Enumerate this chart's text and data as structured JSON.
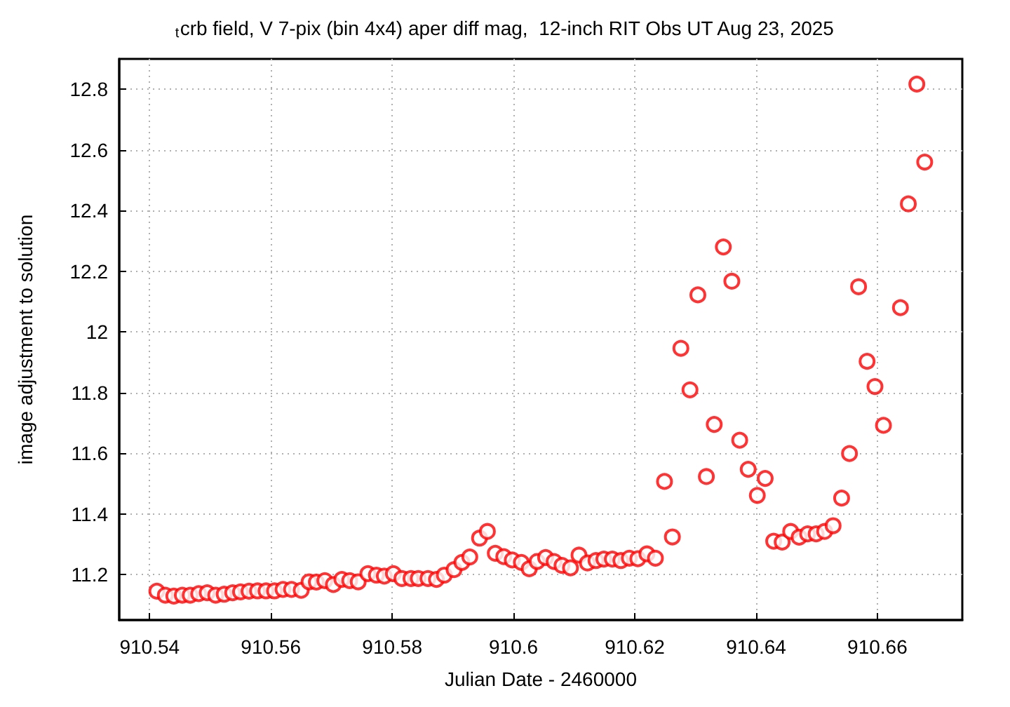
{
  "chart_data": {
    "type": "scatter",
    "title": "$_{t}$crb field, V 7-pix (bin 4x4) aper diff mag,  12-inch RIT Obs UT Aug 23, 2025",
    "xlabel": "Julian Date - 2460000",
    "ylabel": "image adjustment to solution",
    "series": [
      {
        "color": "#ff0000",
        "x": [
          910.5412,
          910.5426,
          910.544,
          910.5454,
          910.5467,
          910.5481,
          910.5495,
          910.5509,
          910.5523,
          910.5537,
          910.555,
          910.5564,
          910.5578,
          910.5592,
          910.5606,
          910.562,
          910.5634,
          910.565,
          910.5663,
          910.5675,
          910.5689,
          910.5703,
          910.5717,
          910.573,
          910.5744,
          910.576,
          910.5774,
          910.5787,
          910.5802,
          910.5816,
          910.5831,
          910.5843,
          910.5859,
          910.5873,
          910.5886,
          910.5902,
          910.5915,
          910.5928,
          910.5944,
          910.5957,
          910.597,
          910.5984,
          910.5998,
          910.6013,
          910.6026,
          910.6039,
          910.6053,
          910.6067,
          910.608,
          910.6094,
          910.6108,
          910.6122,
          910.6136,
          910.6149,
          910.6163,
          910.6177,
          910.6191,
          910.6205,
          910.622,
          910.6234,
          910.6249,
          910.6262,
          910.6276,
          910.6291,
          910.6304,
          910.6318,
          910.6331,
          910.6346,
          910.636,
          910.6373,
          910.6387,
          910.6402,
          910.6415,
          910.6429,
          910.6443,
          910.6457,
          910.6471,
          910.6485,
          910.6499,
          910.6513,
          910.6527,
          910.6541,
          910.6554,
          910.6569,
          910.6583,
          910.6596,
          910.661,
          910.6638,
          910.6651,
          910.6665,
          910.6678
        ],
        "values": [
          11.145,
          11.132,
          11.129,
          11.132,
          11.132,
          11.137,
          11.14,
          11.132,
          11.135,
          11.14,
          11.143,
          11.145,
          11.146,
          11.146,
          11.146,
          11.151,
          11.151,
          11.148,
          11.176,
          11.175,
          11.18,
          11.167,
          11.184,
          11.18,
          11.176,
          11.203,
          11.198,
          11.195,
          11.203,
          11.187,
          11.187,
          11.187,
          11.187,
          11.184,
          11.198,
          11.216,
          11.24,
          11.258,
          11.32,
          11.342,
          11.27,
          11.259,
          11.248,
          11.24,
          11.219,
          11.243,
          11.256,
          11.243,
          11.23,
          11.222,
          11.264,
          11.238,
          11.246,
          11.251,
          11.251,
          11.246,
          11.254,
          11.252,
          11.268,
          11.254,
          11.507,
          11.324,
          11.946,
          11.809,
          12.122,
          11.523,
          11.695,
          12.28,
          12.167,
          11.643,
          11.547,
          11.461,
          11.517,
          11.31,
          11.307,
          11.342,
          11.323,
          11.334,
          11.334,
          11.342,
          11.361,
          11.452,
          11.599,
          12.149,
          11.903,
          11.82,
          11.692,
          12.08,
          12.422,
          12.817,
          12.56
        ]
      }
    ],
    "xlim": [
      910.535,
      910.674
    ],
    "xticks": [
      910.54,
      910.56,
      910.58,
      910.6,
      910.62,
      910.64,
      910.66
    ],
    "ylim": [
      11.05,
      12.9
    ],
    "yticks": [
      11.2,
      11.4,
      11.6,
      11.8,
      12,
      12.2,
      12.4,
      12.6,
      12.8
    ],
    "grid": true,
    "marker": "circle"
  }
}
